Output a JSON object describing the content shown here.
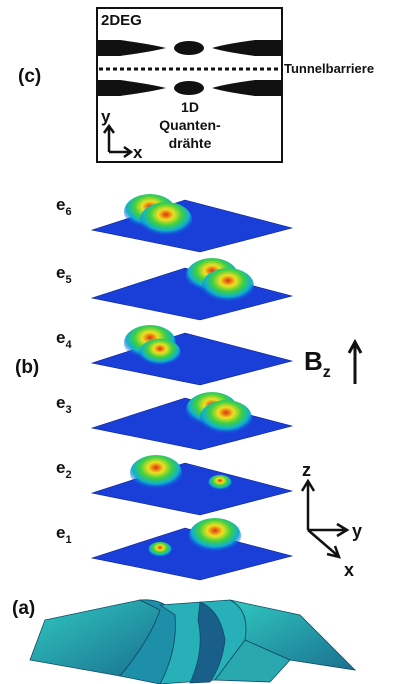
{
  "panel_c": {
    "label": "(c)",
    "region": "2DEG",
    "barrier": "Tunnelbarriere",
    "axis_y": "y",
    "axis_x": "x",
    "wire_label": [
      "1D",
      "Quanten-",
      "drähte"
    ]
  },
  "panel_b": {
    "label": "(b)",
    "states": [
      {
        "base": "e",
        "index": "6"
      },
      {
        "base": "e",
        "index": "5"
      },
      {
        "base": "e",
        "index": "4"
      },
      {
        "base": "e",
        "index": "3"
      },
      {
        "base": "e",
        "index": "2"
      },
      {
        "base": "e",
        "index": "1"
      }
    ],
    "field": {
      "base": "B",
      "index": "z"
    },
    "axes": {
      "z": "z",
      "y": "y",
      "x": "x"
    }
  },
  "panel_a": {
    "label": "(a)"
  }
}
